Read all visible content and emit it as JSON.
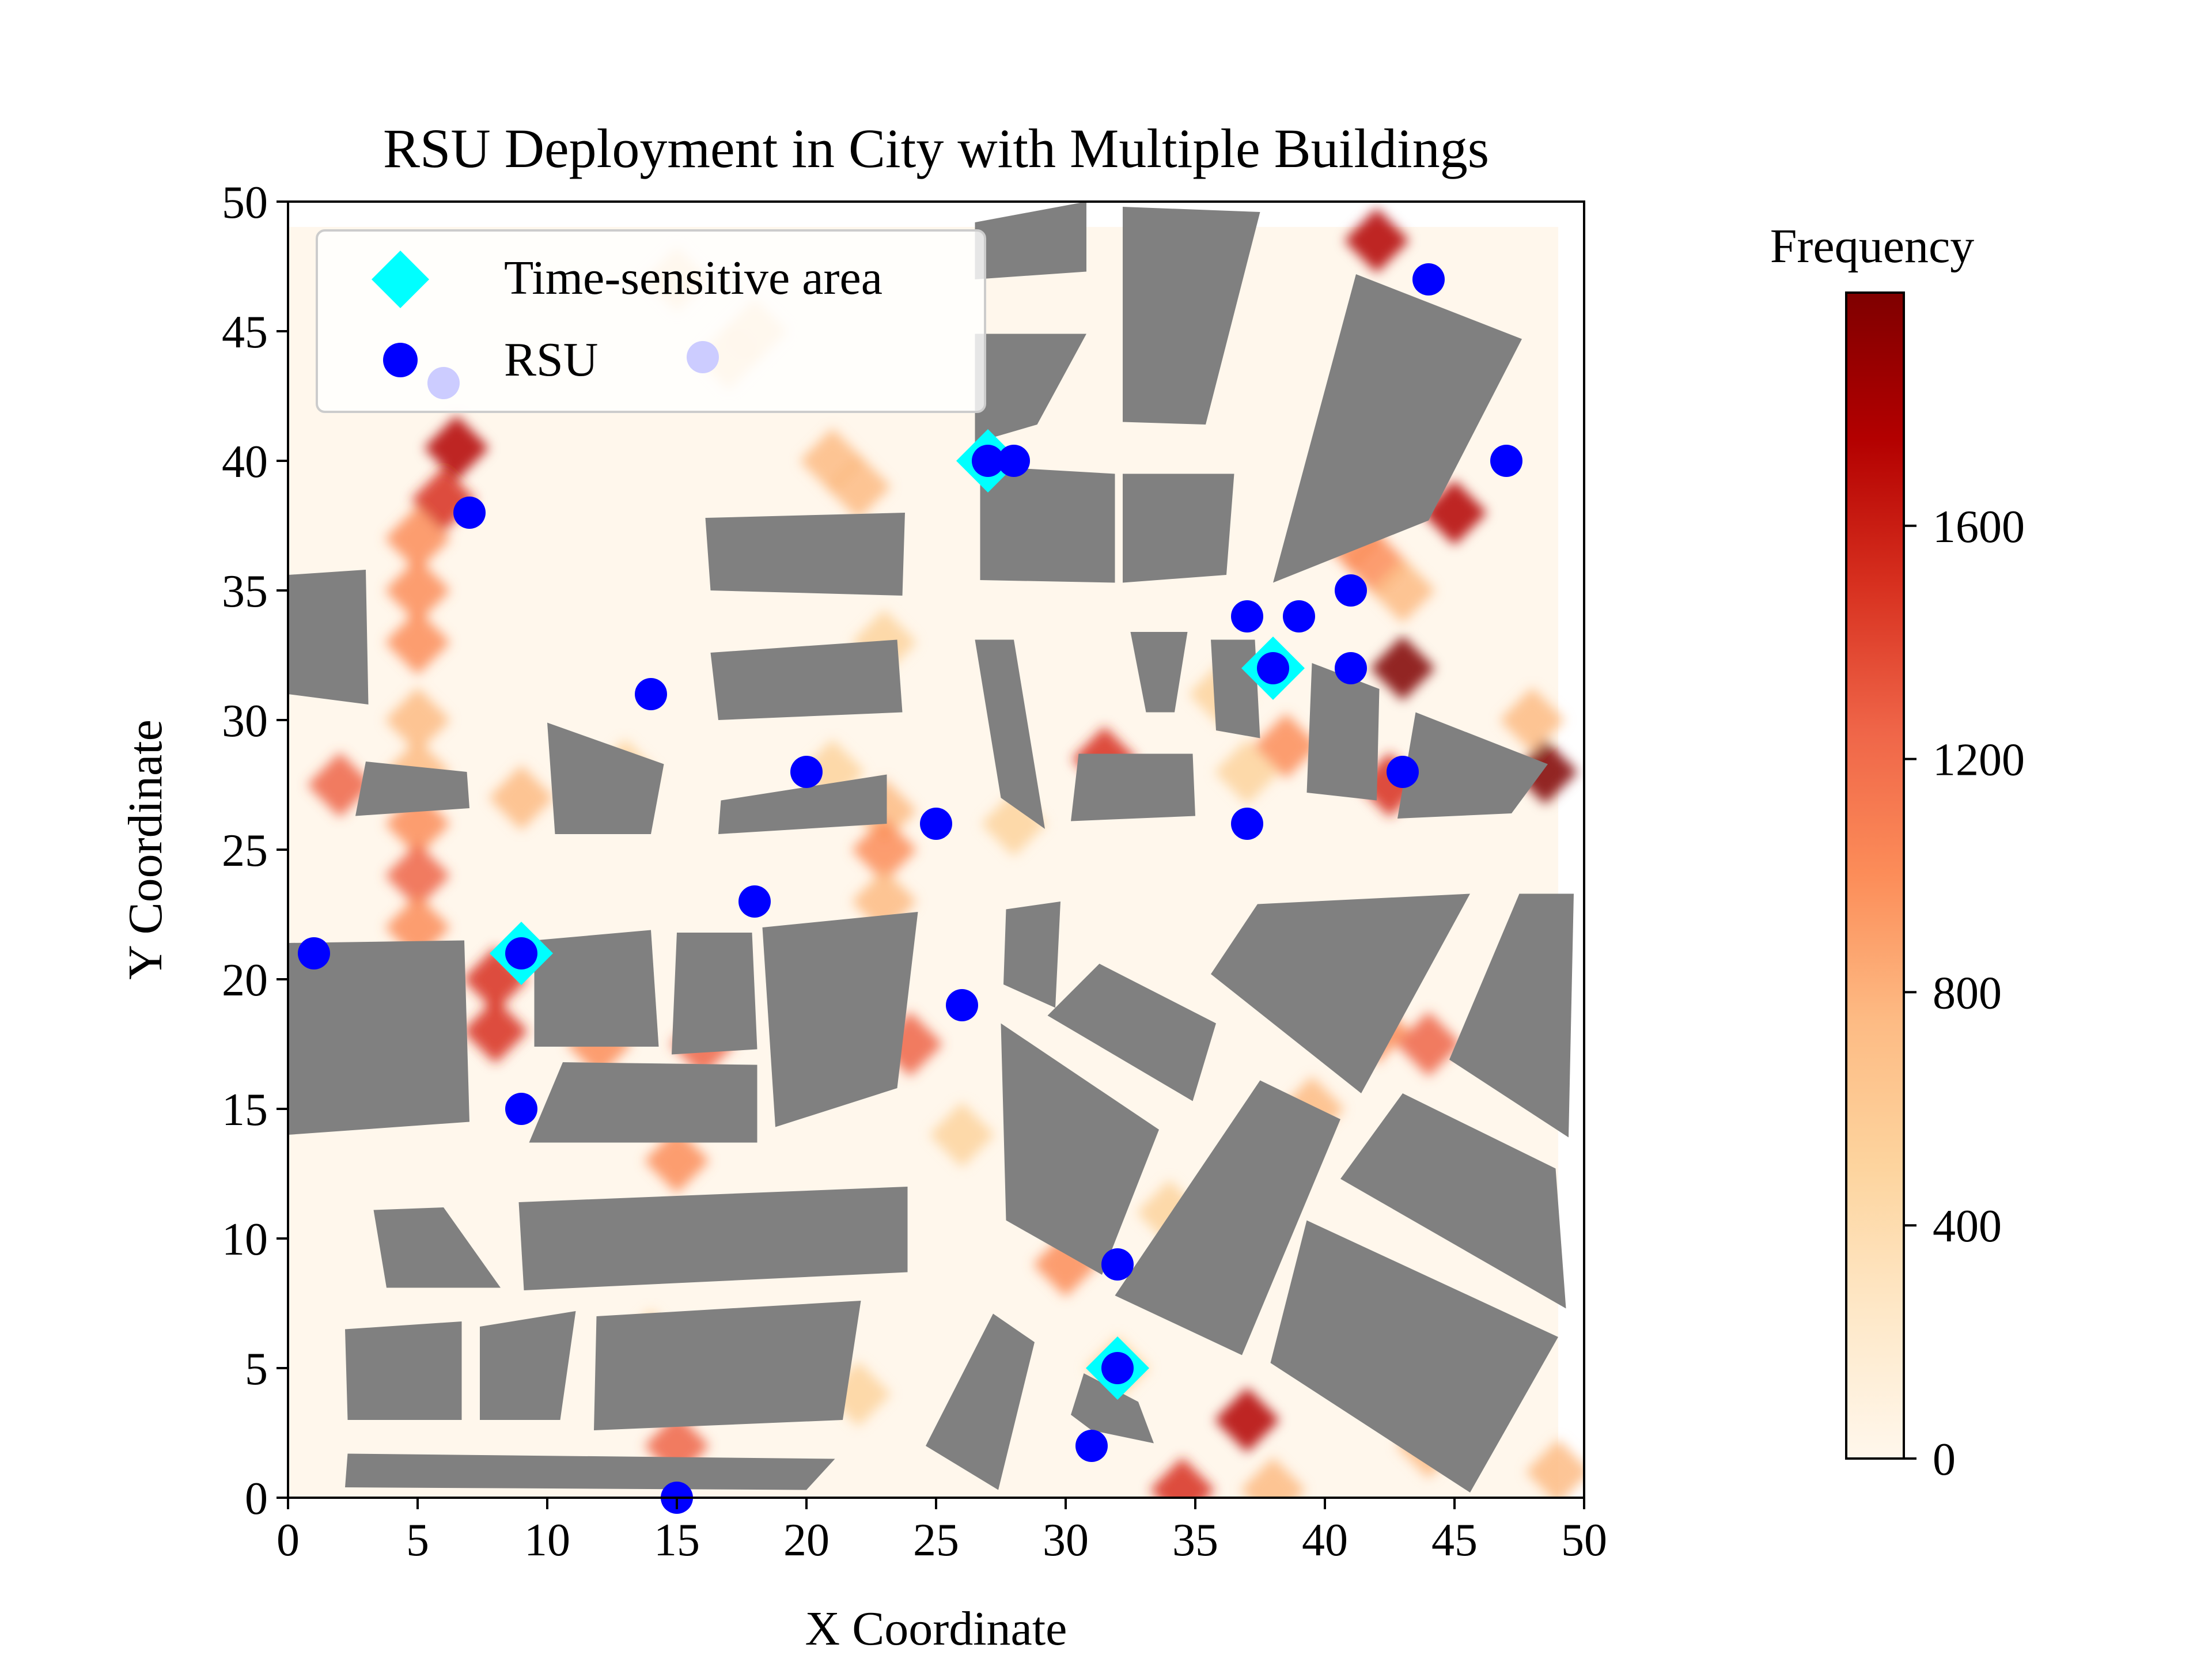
{
  "chart_data": {
    "type": "scatter",
    "title": "RSU Deployment in City with Multiple Buildings",
    "xlabel": "X Coordinate",
    "ylabel": "Y Coordinate",
    "xlim": [
      0,
      50
    ],
    "ylim": [
      0,
      50
    ],
    "x_ticks": [
      0,
      5,
      10,
      15,
      20,
      25,
      30,
      35,
      40,
      45,
      50
    ],
    "y_ticks": [
      0,
      5,
      10,
      15,
      20,
      25,
      30,
      35,
      40,
      45,
      50
    ],
    "grid": false,
    "legend_position": "top-left",
    "legend": [
      {
        "label": "Time-sensitive area",
        "marker": "diamond",
        "color": "#00ffff"
      },
      {
        "label": "RSU",
        "marker": "circle",
        "color": "#0000ff"
      }
    ],
    "series": [
      {
        "name": "Time-sensitive area",
        "marker": "diamond",
        "color": "#00ffff",
        "points": [
          [
            27,
            40
          ],
          [
            38,
            32
          ],
          [
            9,
            21
          ],
          [
            32,
            5
          ]
        ]
      },
      {
        "name": "RSU",
        "marker": "circle",
        "color": "#0000ff",
        "points": [
          [
            44,
            47
          ],
          [
            6,
            43
          ],
          [
            16,
            44
          ],
          [
            27,
            40
          ],
          [
            28,
            40
          ],
          [
            47,
            40
          ],
          [
            7,
            38
          ],
          [
            41,
            35
          ],
          [
            37,
            34
          ],
          [
            39,
            34
          ],
          [
            38,
            32
          ],
          [
            41,
            32
          ],
          [
            14,
            31
          ],
          [
            20,
            28
          ],
          [
            43,
            28
          ],
          [
            25,
            26
          ],
          [
            37,
            26
          ],
          [
            18,
            23
          ],
          [
            1,
            21
          ],
          [
            9,
            21
          ],
          [
            26,
            19
          ],
          [
            9,
            15
          ],
          [
            32,
            9
          ],
          [
            32,
            5
          ],
          [
            31,
            2
          ],
          [
            15,
            0
          ]
        ]
      }
    ],
    "buildings": {
      "color": "#808080",
      "polygons": [
        [
          [
            26.5,
            49.2
          ],
          [
            30.8,
            50
          ],
          [
            30.8,
            47.3
          ],
          [
            26.5,
            47.0
          ]
        ],
        [
          [
            32.2,
            49.8
          ],
          [
            37.5,
            49.6
          ],
          [
            35.4,
            41.4
          ],
          [
            32.2,
            41.5
          ]
        ],
        [
          [
            26.5,
            44.9
          ],
          [
            30.8,
            44.9
          ],
          [
            28.9,
            41.4
          ],
          [
            26.5,
            40.7
          ]
        ],
        [
          [
            41.2,
            47.2
          ],
          [
            47.6,
            44.7
          ],
          [
            44.0,
            37.7
          ],
          [
            38.0,
            35.3
          ]
        ],
        [
          [
            16.1,
            37.8
          ],
          [
            23.8,
            38.0
          ],
          [
            23.7,
            34.8
          ],
          [
            16.3,
            35.0
          ]
        ],
        [
          [
            26.7,
            39.8
          ],
          [
            31.9,
            39.5
          ],
          [
            31.9,
            35.3
          ],
          [
            26.7,
            35.4
          ]
        ],
        [
          [
            32.2,
            39.5
          ],
          [
            36.5,
            39.5
          ],
          [
            36.2,
            35.6
          ],
          [
            32.2,
            35.3
          ]
        ],
        [
          [
            0.0,
            35.6
          ],
          [
            3.0,
            35.8
          ],
          [
            3.1,
            30.6
          ],
          [
            0.0,
            31.0
          ]
        ],
        [
          [
            16.3,
            32.6
          ],
          [
            23.5,
            33.1
          ],
          [
            23.7,
            30.3
          ],
          [
            16.6,
            30.0
          ]
        ],
        [
          [
            26.5,
            33.1
          ],
          [
            28.0,
            33.1
          ],
          [
            29.2,
            25.8
          ],
          [
            27.5,
            27.0
          ]
        ],
        [
          [
            32.5,
            33.4
          ],
          [
            34.7,
            33.4
          ],
          [
            34.2,
            30.3
          ],
          [
            33.1,
            30.3
          ]
        ],
        [
          [
            35.6,
            33.1
          ],
          [
            37.3,
            33.1
          ],
          [
            37.5,
            29.3
          ],
          [
            35.8,
            29.6
          ]
        ],
        [
          [
            39.5,
            32.2
          ],
          [
            42.1,
            31.2
          ],
          [
            42.0,
            26.9
          ],
          [
            39.3,
            27.2
          ]
        ],
        [
          [
            43.5,
            30.3
          ],
          [
            48.6,
            28.3
          ],
          [
            47.2,
            26.4
          ],
          [
            42.8,
            26.2
          ]
        ],
        [
          [
            10.0,
            29.9
          ],
          [
            14.5,
            28.3
          ],
          [
            14.0,
            25.6
          ],
          [
            10.3,
            25.6
          ]
        ],
        [
          [
            3.0,
            28.4
          ],
          [
            6.9,
            28.0
          ],
          [
            7.0,
            26.6
          ],
          [
            2.6,
            26.3
          ]
        ],
        [
          [
            16.7,
            26.9
          ],
          [
            23.1,
            27.9
          ],
          [
            23.1,
            26.0
          ],
          [
            16.6,
            25.6
          ]
        ],
        [
          [
            30.5,
            28.7
          ],
          [
            34.9,
            28.7
          ],
          [
            35.0,
            26.3
          ],
          [
            30.2,
            26.1
          ]
        ],
        [
          [
            0.0,
            21.4
          ],
          [
            6.8,
            21.5
          ],
          [
            7.0,
            14.5
          ],
          [
            0.0,
            14.0
          ]
        ],
        [
          [
            9.5,
            21.5
          ],
          [
            14.0,
            21.9
          ],
          [
            14.3,
            17.4
          ],
          [
            9.5,
            17.4
          ]
        ],
        [
          [
            15.0,
            21.8
          ],
          [
            17.9,
            21.8
          ],
          [
            18.1,
            17.3
          ],
          [
            14.8,
            17.1
          ]
        ],
        [
          [
            18.3,
            22.0
          ],
          [
            24.3,
            22.6
          ],
          [
            23.5,
            15.8
          ],
          [
            18.8,
            14.3
          ]
        ],
        [
          [
            27.7,
            22.7
          ],
          [
            29.8,
            23.0
          ],
          [
            29.6,
            18.9
          ],
          [
            27.6,
            19.8
          ]
        ],
        [
          [
            37.4,
            22.9
          ],
          [
            45.6,
            23.3
          ],
          [
            41.4,
            15.6
          ],
          [
            35.6,
            20.2
          ]
        ],
        [
          [
            47.5,
            23.3
          ],
          [
            49.6,
            23.3
          ],
          [
            49.4,
            13.9
          ],
          [
            44.8,
            16.9
          ]
        ],
        [
          [
            31.3,
            20.6
          ],
          [
            35.8,
            18.3
          ],
          [
            34.9,
            15.3
          ],
          [
            29.3,
            18.6
          ]
        ],
        [
          [
            10.6,
            16.8
          ],
          [
            18.1,
            16.7
          ],
          [
            18.1,
            13.7
          ],
          [
            9.3,
            13.7
          ]
        ],
        [
          [
            27.5,
            18.3
          ],
          [
            33.6,
            14.2
          ],
          [
            31.4,
            8.6
          ],
          [
            27.7,
            10.7
          ]
        ],
        [
          [
            37.5,
            16.1
          ],
          [
            40.6,
            14.6
          ],
          [
            36.8,
            5.5
          ],
          [
            31.9,
            7.8
          ]
        ],
        [
          [
            43.0,
            15.6
          ],
          [
            48.9,
            12.7
          ],
          [
            49.3,
            7.3
          ],
          [
            40.6,
            12.3
          ]
        ],
        [
          [
            3.3,
            11.1
          ],
          [
            6.0,
            11.2
          ],
          [
            8.2,
            8.1
          ],
          [
            3.8,
            8.1
          ]
        ],
        [
          [
            8.9,
            11.4
          ],
          [
            23.9,
            12.0
          ],
          [
            23.9,
            8.7
          ],
          [
            9.1,
            8.0
          ]
        ],
        [
          [
            39.3,
            10.7
          ],
          [
            49.0,
            6.2
          ],
          [
            45.6,
            0.2
          ],
          [
            37.9,
            5.2
          ]
        ],
        [
          [
            2.2,
            6.5
          ],
          [
            6.7,
            6.8
          ],
          [
            6.7,
            3.0
          ],
          [
            2.3,
            3.0
          ]
        ],
        [
          [
            7.4,
            6.6
          ],
          [
            11.1,
            7.2
          ],
          [
            10.5,
            3.0
          ],
          [
            7.4,
            3.0
          ]
        ],
        [
          [
            11.9,
            7.0
          ],
          [
            22.1,
            7.6
          ],
          [
            21.4,
            3.0
          ],
          [
            11.8,
            2.6
          ]
        ],
        [
          [
            27.2,
            7.1
          ],
          [
            28.8,
            6.0
          ],
          [
            27.4,
            0.3
          ],
          [
            24.6,
            2.0
          ]
        ],
        [
          [
            30.7,
            4.8
          ],
          [
            32.8,
            3.7
          ],
          [
            33.4,
            2.1
          ],
          [
            31.0,
            2.6
          ],
          [
            30.2,
            3.2
          ]
        ],
        [
          [
            2.3,
            1.7
          ],
          [
            21.1,
            1.5
          ],
          [
            20.0,
            0.3
          ],
          [
            2.2,
            0.4
          ]
        ]
      ]
    },
    "heatmap": {
      "colormap": "OrRd",
      "colorbar_label": "Frequency",
      "colorbar_ticks": [
        0,
        400,
        800,
        1200,
        1600
      ],
      "vmin": 0,
      "vmax": 2000,
      "hotspots": [
        [
          5.0,
          37.0,
          1100
        ],
        [
          6.0,
          38.5,
          1400
        ],
        [
          6.5,
          40.5,
          1700
        ],
        [
          5.0,
          35.0,
          900
        ],
        [
          5.0,
          33.0,
          900
        ],
        [
          5.0,
          30.0,
          800
        ],
        [
          5.0,
          28.0,
          700
        ],
        [
          5.0,
          26.0,
          1000
        ],
        [
          5.0,
          24.0,
          1200
        ],
        [
          5.0,
          22.0,
          1100
        ],
        [
          2.0,
          27.5,
          1300
        ],
        [
          9.0,
          27.0,
          700
        ],
        [
          13.0,
          28.0,
          600
        ],
        [
          21.0,
          28.0,
          600
        ],
        [
          23.0,
          26.5,
          800
        ],
        [
          23.0,
          25.0,
          900
        ],
        [
          23.0,
          23.0,
          800
        ],
        [
          21.0,
          40.0,
          800
        ],
        [
          22.0,
          39.0,
          700
        ],
        [
          23.0,
          33.0,
          600
        ],
        [
          15.0,
          47.0,
          500
        ],
        [
          18.0,
          45.0,
          500
        ],
        [
          17.0,
          44.0,
          400
        ],
        [
          8.0,
          20.0,
          1500
        ],
        [
          8.0,
          18.0,
          1400
        ],
        [
          12.0,
          17.5,
          900
        ],
        [
          16.0,
          17.5,
          1300
        ],
        [
          24.0,
          17.5,
          1300
        ],
        [
          15.0,
          13.0,
          900
        ],
        [
          15.0,
          2.0,
          1200
        ],
        [
          22.0,
          4.0,
          400
        ],
        [
          30.0,
          9.0,
          900
        ],
        [
          31.5,
          28.5,
          1500
        ],
        [
          36.0,
          31.0,
          600
        ],
        [
          37.0,
          28.0,
          600
        ],
        [
          38.5,
          29.0,
          1000
        ],
        [
          41.0,
          37.0,
          900
        ],
        [
          42.0,
          36.0,
          1100
        ],
        [
          43.0,
          35.0,
          800
        ],
        [
          45.0,
          38.0,
          1700
        ],
        [
          42.0,
          48.5,
          1800
        ],
        [
          43.0,
          32.0,
          1900
        ],
        [
          42.5,
          27.5,
          1600
        ],
        [
          48.5,
          28.0,
          1900
        ],
        [
          48.0,
          30.0,
          700
        ],
        [
          37.0,
          3.0,
          1700
        ],
        [
          34.5,
          0.3,
          1500
        ],
        [
          38.0,
          0.3,
          700
        ],
        [
          44.0,
          2.0,
          700
        ],
        [
          49.0,
          1.0,
          800
        ],
        [
          42.0,
          18.0,
          900
        ],
        [
          44.0,
          17.5,
          1200
        ],
        [
          39.5,
          15.0,
          700
        ],
        [
          32.0,
          5.0,
          600
        ],
        [
          34.0,
          11.0,
          500
        ],
        [
          26.0,
          14.0,
          500
        ],
        [
          14.0,
          6.0,
          400
        ],
        [
          28.0,
          26.0,
          600
        ]
      ]
    }
  }
}
